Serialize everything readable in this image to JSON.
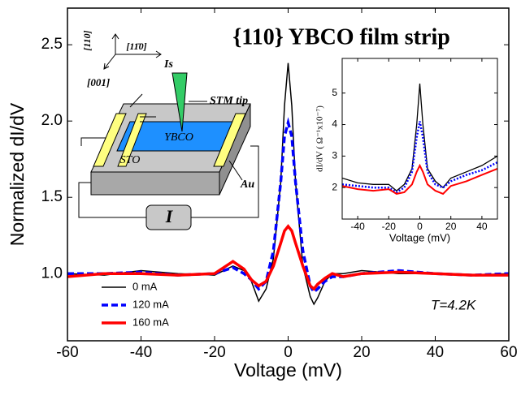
{
  "chart_data": [
    {
      "type": "line",
      "title": "{110} YBCO film strip",
      "xlabel": "Voltage (mV)",
      "ylabel": "Normalized dI/dV",
      "annotations": [
        "T=4.2K",
        "[110]",
        "[11̄0]",
        "Is",
        "[001]",
        "STM tip",
        "YBCO",
        "STO",
        "Au",
        "I"
      ],
      "x": [
        -60,
        -50,
        -40,
        -30,
        -20,
        -15,
        -12,
        -10,
        -8,
        -6,
        -4,
        -2,
        -1,
        0,
        1,
        2,
        4,
        6,
        7,
        8,
        10,
        12,
        15,
        20,
        30,
        40,
        50,
        60
      ],
      "series": [
        {
          "name": "0 mA",
          "color": "#000000",
          "linestyle": "solid",
          "values": [
            1.0,
            0.99,
            1.02,
            1.0,
            0.99,
            1.05,
            1.02,
            0.95,
            0.82,
            0.9,
            1.1,
            1.6,
            2.1,
            2.38,
            2.1,
            1.6,
            1.05,
            0.85,
            0.8,
            0.84,
            0.95,
            1.0,
            1.0,
            1.02,
            1.0,
            1.0,
            0.99,
            1.0
          ]
        },
        {
          "name": "120 mA",
          "color": "#0000ff",
          "linestyle": "dashed",
          "values": [
            1.0,
            1.0,
            1.01,
            0.99,
            1.0,
            1.04,
            1.0,
            0.96,
            0.9,
            0.95,
            1.15,
            1.6,
            1.9,
            1.99,
            1.9,
            1.6,
            1.15,
            0.92,
            0.88,
            0.9,
            0.95,
            0.98,
            0.98,
            1.0,
            1.02,
            1.0,
            0.99,
            1.0
          ]
        },
        {
          "name": "160 mA",
          "color": "#ff0000",
          "linestyle": "solid",
          "values": [
            0.98,
            1.0,
            1.0,
            0.99,
            1.0,
            1.08,
            1.03,
            0.96,
            0.92,
            0.95,
            1.05,
            1.2,
            1.28,
            1.31,
            1.28,
            1.2,
            1.05,
            0.92,
            0.9,
            0.93,
            0.97,
            1.0,
            0.98,
            1.0,
            1.01,
            1.0,
            0.99,
            0.99
          ]
        }
      ],
      "xlim": [
        -60,
        60
      ],
      "xticks": [
        -60,
        -40,
        -20,
        0,
        20,
        40,
        60
      ],
      "ylim": [
        0.56,
        2.74
      ],
      "yticks": [
        {
          "value": 1,
          "label": "1.0"
        },
        1.5,
        {
          "value": 2,
          "label": "2.0"
        },
        2.5
      ],
      "legend": "lower left"
    },
    {
      "type": "line",
      "xlabel": "Voltage (mV)",
      "ylabel": "dI/dV ( Ω⁻¹x10⁻⁷)",
      "x": [
        -50,
        -40,
        -30,
        -20,
        -15,
        -10,
        -5,
        -2,
        0,
        2,
        5,
        10,
        15,
        20,
        30,
        40,
        50
      ],
      "series": [
        {
          "name": "0 mA",
          "color": "#000000",
          "linestyle": "solid",
          "values": [
            2.3,
            2.15,
            2.1,
            2.1,
            1.9,
            2.1,
            2.6,
            4.0,
            5.3,
            4.0,
            2.6,
            2.2,
            2.0,
            2.3,
            2.5,
            2.7,
            3.0
          ]
        },
        {
          "name": "120 mA",
          "color": "#0000ff",
          "linestyle": "dotted",
          "values": [
            2.1,
            2.05,
            2.0,
            2.0,
            1.85,
            2.0,
            2.5,
            3.6,
            4.1,
            3.6,
            2.5,
            2.1,
            2.0,
            2.2,
            2.4,
            2.55,
            2.8
          ]
        },
        {
          "name": "160 mA",
          "color": "#ff0000",
          "linestyle": "solid",
          "values": [
            2.05,
            1.95,
            1.9,
            1.95,
            1.8,
            1.85,
            2.1,
            2.5,
            2.7,
            2.5,
            2.1,
            1.9,
            1.8,
            2.05,
            2.2,
            2.4,
            2.6
          ]
        }
      ],
      "xlim": [
        -50,
        50
      ],
      "xticks": [
        -40,
        -20,
        0,
        20,
        40
      ],
      "ylim": [
        1.0,
        6.1
      ],
      "yticks": [
        2,
        3,
        4,
        5
      ]
    }
  ]
}
